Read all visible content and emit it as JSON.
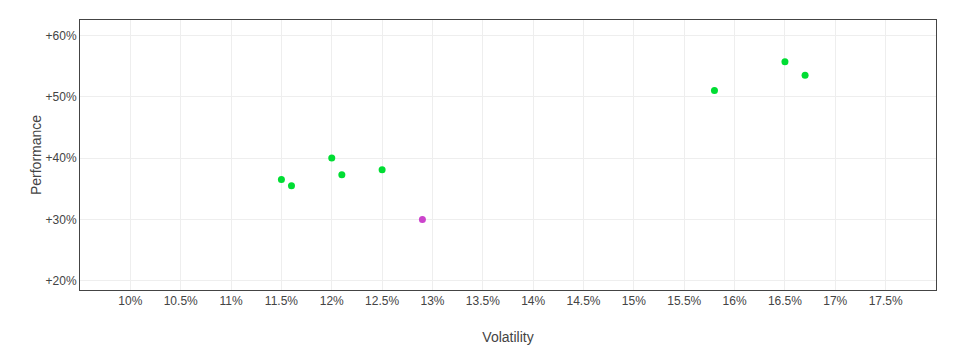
{
  "chart_data": {
    "type": "scatter",
    "xlabel": "Volatility",
    "ylabel": "Performance",
    "xlim": [
      0.095,
      0.18
    ],
    "ylim": [
      0.185,
      0.625
    ],
    "xticks": [
      {
        "value": 0.1,
        "label": "10%"
      },
      {
        "value": 0.105,
        "label": "10.5%"
      },
      {
        "value": 0.11,
        "label": "11%"
      },
      {
        "value": 0.115,
        "label": "11.5%"
      },
      {
        "value": 0.12,
        "label": "12%"
      },
      {
        "value": 0.125,
        "label": "12.5%"
      },
      {
        "value": 0.13,
        "label": "13%"
      },
      {
        "value": 0.135,
        "label": "13.5%"
      },
      {
        "value": 0.14,
        "label": "14%"
      },
      {
        "value": 0.145,
        "label": "14.5%"
      },
      {
        "value": 0.15,
        "label": "15%"
      },
      {
        "value": 0.155,
        "label": "15.5%"
      },
      {
        "value": 0.16,
        "label": "16%"
      },
      {
        "value": 0.165,
        "label": "16.5%"
      },
      {
        "value": 0.17,
        "label": "17%"
      },
      {
        "value": 0.175,
        "label": "17.5%"
      }
    ],
    "yticks": [
      {
        "value": 0.2,
        "label": "+20%"
      },
      {
        "value": 0.3,
        "label": "+30%"
      },
      {
        "value": 0.4,
        "label": "+40%"
      },
      {
        "value": 0.5,
        "label": "+50%"
      },
      {
        "value": 0.6,
        "label": "+60%"
      }
    ],
    "grid": true,
    "series": [
      {
        "color": "#00dd33",
        "x": [
          0.115,
          0.116,
          0.12,
          0.121,
          0.125,
          0.158,
          0.165,
          0.167
        ],
        "values": [
          0.365,
          0.355,
          0.4,
          0.373,
          0.381,
          0.51,
          0.557,
          0.535
        ]
      },
      {
        "color": "#cc44cc",
        "x": [
          0.129
        ],
        "values": [
          0.3
        ]
      }
    ]
  }
}
